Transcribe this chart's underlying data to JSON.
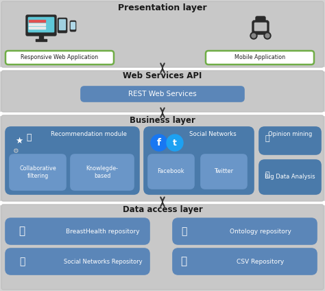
{
  "bg_color": "#d4d4d4",
  "box_blue": "#5b86b8",
  "box_blue_dark": "#4a7aaa",
  "box_blue_inner": "#6a96c8",
  "green_border": "#70ad47",
  "white": "#ffffff",
  "layer_bg": "#c8c8c8",
  "layer_sep": "#ffffff",
  "title_color": "#1a1a1a",
  "title": "Presentation layer",
  "web_api_title": "Web Services API",
  "business_title": "Business layer",
  "data_title": "Data access layer",
  "rest_label": "REST Web Services",
  "responsive_label": "Responsive Web Application",
  "mobile_label": "Mobile Application",
  "rec_module": "Recommendation module",
  "collab": "Collaborative\nfiltering",
  "knowledge": "Knowlegde-\nbased",
  "social_net": "Social Networks",
  "facebook": "Facebook",
  "twitter": "Twitter",
  "opinion": "Opinion mining",
  "bigdata": "Big Data Analysis",
  "breast": "BreastHealth repository",
  "ontology": "Ontology repository",
  "social_repo": "Social Networks Repository",
  "csv": "CSV Repository",
  "figw": 4.74,
  "figh": 4.24,
  "dpi": 100
}
